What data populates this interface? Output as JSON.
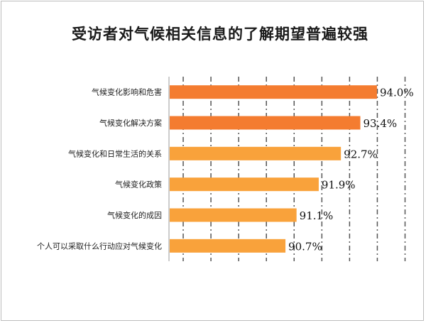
{
  "chart_data": {
    "type": "bar",
    "orientation": "horizontal",
    "title": "受访者对气候相关信息的了解期望普遍较强",
    "categories": [
      "气候变化影响和危害",
      "气候变化解决方案",
      "气候变化和日常生活的关系",
      "气候变化政策",
      "气候变化的成因",
      "个人可以采取什么行动应对气候变化"
    ],
    "values": [
      94.0,
      93.4,
      92.7,
      91.9,
      91.1,
      90.7
    ],
    "value_labels": [
      "94.0%",
      "93.4%",
      "92.7%",
      "91.9%",
      "91.1%",
      "90.7%"
    ],
    "xlim": [
      86.5,
      95.0
    ],
    "grid": "vertical dashed",
    "legend": "none",
    "colors": [
      "#F47C30",
      "#F47C30",
      "#F9A23B",
      "#F9A23B",
      "#F9A23B",
      "#F9A23B"
    ]
  }
}
